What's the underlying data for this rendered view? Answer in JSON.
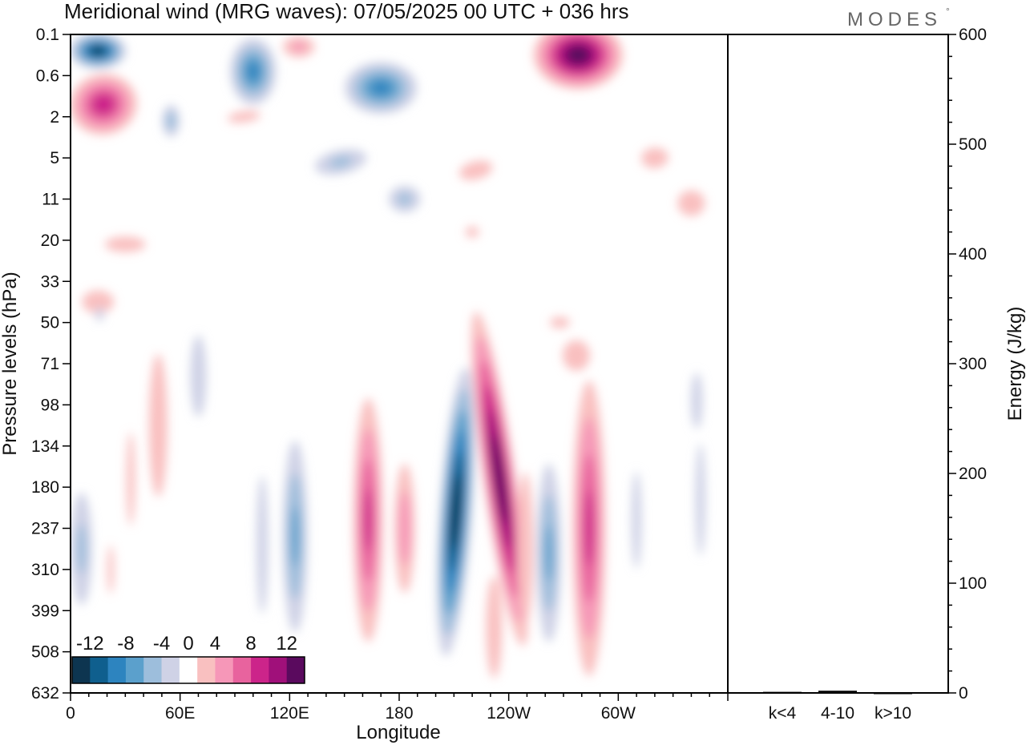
{
  "logo": {
    "text": "MODES",
    "mark": "°"
  },
  "chart_data": [
    {
      "type": "heatmap",
      "title": "Meridional wind (MRG waves):  07/05/2025  00 UTC  + 036 hrs",
      "xlabel": "Longitude",
      "ylabel": "Pressure levels (hPa)",
      "x_ticks": [
        {
          "label": "0",
          "lon": 0
        },
        {
          "label": "60E",
          "lon": 60
        },
        {
          "label": "120E",
          "lon": 120
        },
        {
          "label": "180",
          "lon": 180
        },
        {
          "label": "120W",
          "lon": 240
        },
        {
          "label": "60W",
          "lon": 300
        }
      ],
      "xlim": [
        0,
        360
      ],
      "y_levels": [
        "0.1",
        "0.6",
        "2",
        "5",
        "11",
        "20",
        "33",
        "50",
        "71",
        "98",
        "134",
        "180",
        "237",
        "310",
        "399",
        "508",
        "632"
      ],
      "colorbar": {
        "labels": [
          "-12",
          "-8",
          "-4",
          "0",
          "4",
          "8",
          "12"
        ],
        "levels": [
          -14,
          -12,
          -10,
          -8,
          -6,
          -4,
          -2,
          2,
          4,
          6,
          8,
          10,
          12,
          14
        ],
        "colors": [
          "#0d3550",
          "#0f5f8e",
          "#2d84bf",
          "#5ba0cc",
          "#9dbedc",
          "#cfd2e6",
          "#ffffff",
          "#f9c0c0",
          "#f697b8",
          "#e8639e",
          "#cc248a",
          "#a0107a",
          "#5a0a5e"
        ]
      },
      "features": [
        {
          "lon": 15,
          "level": 0.4,
          "value": -13,
          "w": 16,
          "h": 0.45,
          "rot": 0
        },
        {
          "lon": 100,
          "level": 0.9,
          "value": -9,
          "w": 14,
          "h": 0.9,
          "rot": 0
        },
        {
          "lon": 170,
          "level": 1.3,
          "value": -9,
          "w": 22,
          "h": 0.7,
          "rot": 0
        },
        {
          "lon": 55,
          "level": 2.1,
          "value": -6,
          "w": 6,
          "h": 0.5,
          "rot": 0
        },
        {
          "lon": 148,
          "level": 3.1,
          "value": -5,
          "w": 20,
          "h": 0.4,
          "rot": -12
        },
        {
          "lon": 183,
          "level": 4.0,
          "value": -5,
          "w": 12,
          "h": 0.45,
          "rot": 0
        },
        {
          "lon": 18,
          "level": 1.7,
          "value": 10,
          "w": 20,
          "h": 0.8,
          "rot": -10
        },
        {
          "lon": 125,
          "level": 0.3,
          "value": 5,
          "w": 12,
          "h": 0.35,
          "rot": 0
        },
        {
          "lon": 278,
          "level": 0.5,
          "value": 14,
          "w": 25,
          "h": 0.85,
          "rot": 0
        },
        {
          "lon": 95,
          "level": 2.0,
          "value": 3,
          "w": 20,
          "h": 0.3,
          "rot": -8
        },
        {
          "lon": 222,
          "level": 3.3,
          "value": 4,
          "w": 15,
          "h": 0.35,
          "rot": -15
        },
        {
          "lon": 320,
          "level": 3.0,
          "value": 4,
          "w": 12,
          "h": 0.4,
          "rot": -5
        },
        {
          "lon": 340,
          "level": 4.1,
          "value": 4,
          "w": 12,
          "h": 0.5,
          "rot": 0
        },
        {
          "lon": 220,
          "level": 4.8,
          "value": 3,
          "w": 8,
          "h": 0.3,
          "rot": 0
        },
        {
          "lon": 30,
          "level": 5.1,
          "value": 4,
          "w": 18,
          "h": 0.3,
          "rot": 0
        },
        {
          "lon": 15,
          "level": 6.5,
          "value": 4,
          "w": 14,
          "h": 0.45,
          "rot": 0
        },
        {
          "lon": 268,
          "level": 7.0,
          "value": 3,
          "w": 12,
          "h": 0.3,
          "rot": 0
        },
        {
          "lon": 277,
          "level": 7.8,
          "value": 4,
          "w": 12,
          "h": 0.6,
          "rot": 0
        },
        {
          "lon": 48,
          "level": 9.5,
          "value": 4,
          "w": 8,
          "h": 2.8,
          "rot": 0
        },
        {
          "lon": 33,
          "level": 10.8,
          "value": 3,
          "w": 5,
          "h": 2.5,
          "rot": 0
        },
        {
          "lon": 16,
          "level": 6.8,
          "value": -3,
          "w": 5,
          "h": 0.4,
          "rot": 0
        },
        {
          "lon": 70,
          "level": 8.3,
          "value": -4,
          "w": 7,
          "h": 1.6,
          "rot": 0
        },
        {
          "lon": 105,
          "level": 12.4,
          "value": -3,
          "w": 7,
          "h": 3.7,
          "rot": 0
        },
        {
          "lon": 123,
          "level": 12.2,
          "value": -7,
          "w": 8,
          "h": 2.8,
          "rot": 0
        },
        {
          "lon": 163,
          "level": 11.8,
          "value": 9,
          "w": 9,
          "h": 3.3,
          "rot": 0
        },
        {
          "lon": 183,
          "level": 12.0,
          "value": 6,
          "w": 7,
          "h": 2.0,
          "rot": 0
        },
        {
          "lon": 211,
          "level": 11.6,
          "value": -14,
          "w": 9,
          "h": 3.6,
          "rot": 4
        },
        {
          "lon": 235,
          "level": 10.8,
          "value": 14,
          "w": 9,
          "h": 4.2,
          "rot": -8
        },
        {
          "lon": 262,
          "level": 12.6,
          "value": -7,
          "w": 8,
          "h": 2.6,
          "rot": 0
        },
        {
          "lon": 249,
          "level": 12.5,
          "value": 4,
          "w": 7,
          "h": 3.0,
          "rot": 0
        },
        {
          "lon": 232,
          "level": 14.4,
          "value": 4,
          "w": 7,
          "h": 2.0,
          "rot": 0
        },
        {
          "lon": 284,
          "level": 12.0,
          "value": 9,
          "w": 10,
          "h": 4.0,
          "rot": 0
        },
        {
          "lon": 310,
          "level": 11.8,
          "value": -3,
          "w": 6,
          "h": 2.6,
          "rot": 0
        },
        {
          "lon": 345,
          "level": 11.3,
          "value": -3,
          "w": 6,
          "h": 3.0,
          "rot": 0
        },
        {
          "lon": 6,
          "level": 12.5,
          "value": -5,
          "w": 8,
          "h": 1.9,
          "rot": 0
        },
        {
          "lon": 22,
          "level": 13.0,
          "value": 3,
          "w": 4,
          "h": 1.3,
          "rot": 0
        },
        {
          "lon": 343,
          "level": 8.9,
          "value": -3,
          "w": 7,
          "h": 1.5,
          "rot": 0
        }
      ]
    },
    {
      "type": "bar",
      "categories": [
        "k<4",
        "4-10",
        "k>10"
      ],
      "values": [
        1,
        2,
        0
      ],
      "ylabel": "Energy (J/kg)",
      "ylim": [
        0,
        600
      ],
      "y_ticks": [
        0,
        100,
        200,
        300,
        400,
        500,
        600
      ]
    }
  ]
}
